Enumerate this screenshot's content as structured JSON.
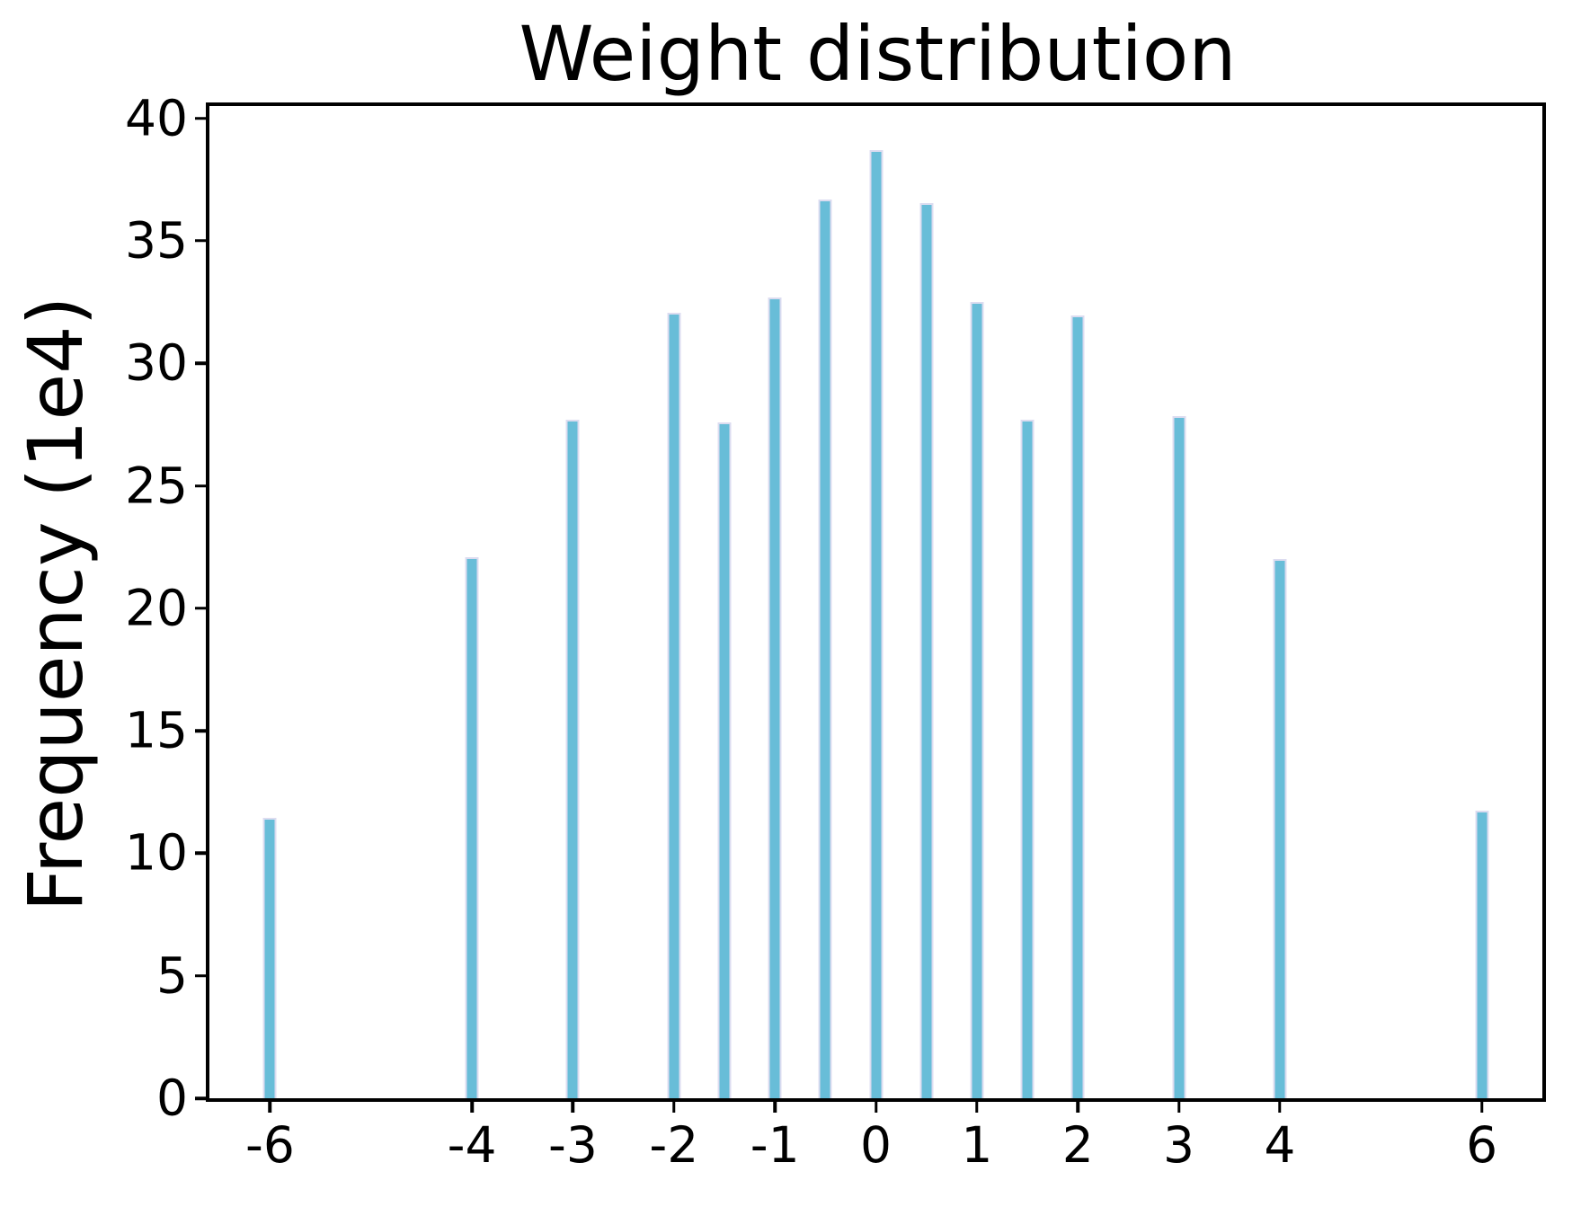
{
  "chart_data": {
    "type": "bar",
    "title": "Weight distribution",
    "xlabel": "",
    "ylabel": "Frequency (1e4)",
    "x": [
      -6,
      -4,
      -3,
      -2,
      -1.5,
      -1,
      -0.5,
      0,
      0.5,
      1,
      1.5,
      2,
      3,
      4,
      6
    ],
    "values": [
      11.45,
      22.1,
      27.7,
      32.05,
      27.6,
      32.7,
      36.7,
      38.7,
      36.55,
      32.5,
      27.7,
      31.95,
      27.85,
      22.0,
      11.75
    ],
    "xtick_values": [
      -6,
      -4,
      -3,
      -2,
      -1,
      0,
      1,
      2,
      3,
      4,
      6
    ],
    "xtick_labels": [
      "-6",
      "-4",
      "-3",
      "-2",
      "-1",
      "0",
      "1",
      "2",
      "3",
      "4",
      "6"
    ],
    "ytick_values": [
      0,
      5,
      10,
      15,
      20,
      25,
      30,
      35,
      40
    ],
    "ytick_labels": [
      "0",
      "5",
      "10",
      "15",
      "20",
      "25",
      "30",
      "35",
      "40"
    ],
    "xlim": [
      -6.6,
      6.6
    ],
    "ylim": [
      0,
      40.5
    ],
    "bar_width_units": 0.132,
    "grid": false,
    "legend": null,
    "colors": {
      "bar_fill": "#68bdd8",
      "bar_edge": "#dcdcf0",
      "axis": "#000000",
      "text": "#000000"
    }
  }
}
